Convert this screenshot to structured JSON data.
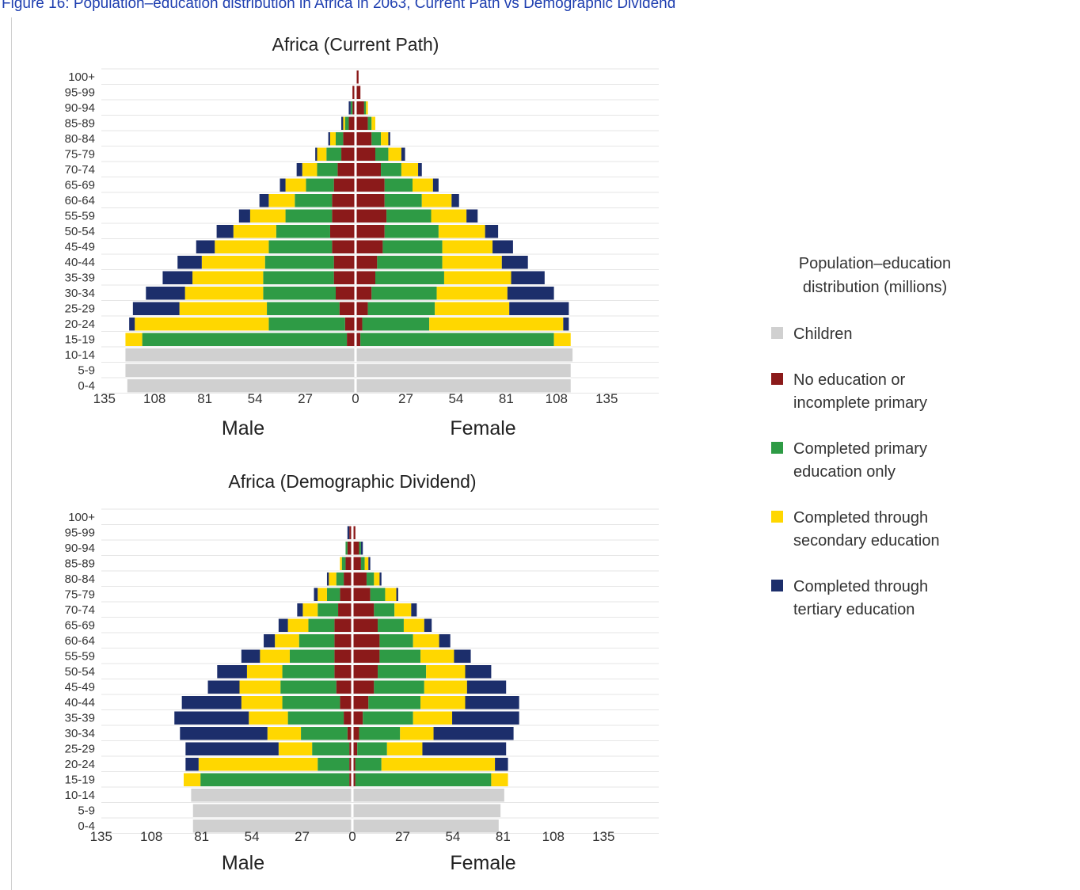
{
  "caption": "Figure 16: Population–education distribution in Africa in 2063, Current Path vs Demographic Dividend",
  "legend": {
    "title": "Population–education distribution (millions)",
    "items": [
      {
        "label": "Children",
        "color": "#d0d0d0"
      },
      {
        "label": "No education or incomplete primary",
        "color": "#8b1a1a"
      },
      {
        "label": "Completed primary education only",
        "color": "#2e9b45"
      },
      {
        "label": "Completed through secondary education",
        "color": "#ffd700"
      },
      {
        "label": "Completed through tertiary education",
        "color": "#1c2e6b"
      }
    ]
  },
  "chart_data": [
    {
      "type": "bar",
      "title": "Africa (Current Path)",
      "xlabel_left": "Male",
      "xlabel_right": "Female",
      "x_ticks": [
        "135",
        "108",
        "81",
        "54",
        "27",
        "0",
        "27",
        "54",
        "81",
        "108",
        "135"
      ],
      "categories": [
        "100+",
        "95-99",
        "90-94",
        "85-89",
        "80-84",
        "75-79",
        "70-74",
        "65-69",
        "60-64",
        "55-59",
        "50-54",
        "45-49",
        "40-44",
        "35-39",
        "30-34",
        "25-29",
        "20-24",
        "15-19",
        "10-14",
        "5-9",
        "0-4"
      ],
      "series": [
        {
          "name": "Children",
          "male": [
            0,
            0,
            0,
            0,
            0,
            0,
            0,
            0,
            0,
            0,
            0,
            0,
            0,
            0,
            0,
            0,
            0,
            0,
            123,
            123,
            122
          ],
          "female": [
            0,
            0,
            0,
            0,
            0,
            0,
            0,
            0,
            0,
            0,
            0,
            0,
            0,
            0,
            0,
            0,
            0,
            0,
            116,
            115,
            115
          ]
        },
        {
          "name": "No education or incomplete primary",
          "male": [
            0,
            1,
            1,
            3,
            6,
            7,
            9,
            11,
            12,
            12,
            13,
            12,
            11,
            11,
            10,
            8,
            5,
            4,
            0,
            0,
            0
          ],
          "female": [
            1,
            2,
            4,
            6,
            8,
            10,
            13,
            15,
            15,
            16,
            15,
            14,
            11,
            10,
            8,
            6,
            3,
            2,
            0,
            0,
            0
          ]
        },
        {
          "name": "Completed primary education only",
          "male": [
            0,
            0,
            1,
            2,
            4,
            8,
            11,
            15,
            20,
            25,
            29,
            34,
            37,
            38,
            39,
            39,
            41,
            110,
            0,
            0,
            0
          ],
          "female": [
            0,
            0,
            1,
            2,
            5,
            7,
            11,
            15,
            20,
            24,
            29,
            32,
            35,
            37,
            35,
            36,
            36,
            104,
            0,
            0,
            0
          ]
        },
        {
          "name": "Completed through secondary education",
          "male": [
            0,
            0,
            0,
            1,
            3,
            5,
            8,
            11,
            14,
            19,
            23,
            29,
            34,
            38,
            42,
            47,
            72,
            9,
            0,
            0,
            0
          ],
          "female": [
            0,
            0,
            1,
            2,
            4,
            7,
            9,
            11,
            16,
            19,
            25,
            27,
            32,
            36,
            38,
            40,
            72,
            9,
            0,
            0,
            0
          ]
        },
        {
          "name": "Completed through tertiary education",
          "male": [
            0,
            0,
            1,
            1,
            1,
            1,
            3,
            3,
            5,
            6,
            9,
            10,
            13,
            16,
            21,
            25,
            3,
            0,
            0,
            0,
            0
          ],
          "female": [
            0,
            0,
            0,
            0,
            1,
            2,
            2,
            3,
            4,
            6,
            7,
            11,
            14,
            18,
            25,
            32,
            3,
            0,
            0,
            0,
            0
          ]
        }
      ]
    },
    {
      "type": "bar",
      "title": "Africa (Demographic Dividend)",
      "xlabel_left": "Male",
      "xlabel_right": "Female",
      "x_ticks": [
        "135",
        "108",
        "81",
        "54",
        "27",
        "0",
        "27",
        "54",
        "81",
        "108",
        "135"
      ],
      "categories": [
        "100+",
        "95-99",
        "90-94",
        "85-89",
        "80-84",
        "75-79",
        "70-74",
        "65-69",
        "60-64",
        "55-59",
        "50-54",
        "45-49",
        "40-44",
        "35-39",
        "30-34",
        "25-29",
        "20-24",
        "15-19",
        "10-14",
        "5-9",
        "0-4"
      ],
      "series": [
        {
          "name": "Children",
          "male": [
            0,
            0,
            0,
            0,
            0,
            0,
            0,
            0,
            0,
            0,
            0,
            0,
            0,
            0,
            0,
            0,
            0,
            0,
            86,
            85,
            85
          ],
          "female": [
            0,
            0,
            0,
            0,
            0,
            0,
            0,
            0,
            0,
            0,
            0,
            0,
            0,
            0,
            0,
            0,
            0,
            0,
            81,
            79,
            78
          ]
        },
        {
          "name": "No education or incomplete primary",
          "male": [
            0,
            1,
            2,
            3,
            4,
            6,
            7,
            9,
            9,
            9,
            9,
            8,
            6,
            4,
            2,
            1,
            1,
            1,
            0,
            0,
            0
          ],
          "female": [
            0,
            1,
            3,
            4,
            7,
            9,
            11,
            13,
            14,
            14,
            13,
            11,
            8,
            5,
            3,
            2,
            1,
            1,
            0,
            0,
            0
          ]
        },
        {
          "name": "Completed primary education only",
          "male": [
            0,
            0,
            1,
            2,
            4,
            7,
            11,
            14,
            19,
            24,
            28,
            30,
            31,
            30,
            25,
            20,
            17,
            80,
            0,
            0,
            0
          ],
          "female": [
            0,
            0,
            1,
            2,
            4,
            8,
            11,
            14,
            18,
            22,
            26,
            27,
            28,
            27,
            22,
            16,
            14,
            73,
            0,
            0,
            0
          ]
        },
        {
          "name": "Completed through secondary education",
          "male": [
            0,
            0,
            0,
            1,
            4,
            5,
            8,
            11,
            13,
            16,
            19,
            22,
            22,
            21,
            18,
            18,
            64,
            9,
            0,
            0,
            0
          ],
          "female": [
            0,
            0,
            0,
            2,
            3,
            6,
            9,
            11,
            14,
            18,
            21,
            23,
            24,
            21,
            18,
            19,
            61,
            9,
            0,
            0,
            0
          ]
        },
        {
          "name": "Completed through tertiary education",
          "male": [
            0,
            1,
            0,
            0,
            1,
            2,
            3,
            5,
            6,
            10,
            16,
            17,
            32,
            40,
            47,
            50,
            7,
            0,
            0,
            0,
            0
          ],
          "female": [
            0,
            0,
            1,
            1,
            1,
            1,
            3,
            4,
            6,
            9,
            14,
            21,
            29,
            36,
            43,
            45,
            7,
            0,
            0,
            0,
            0
          ]
        }
      ]
    }
  ]
}
